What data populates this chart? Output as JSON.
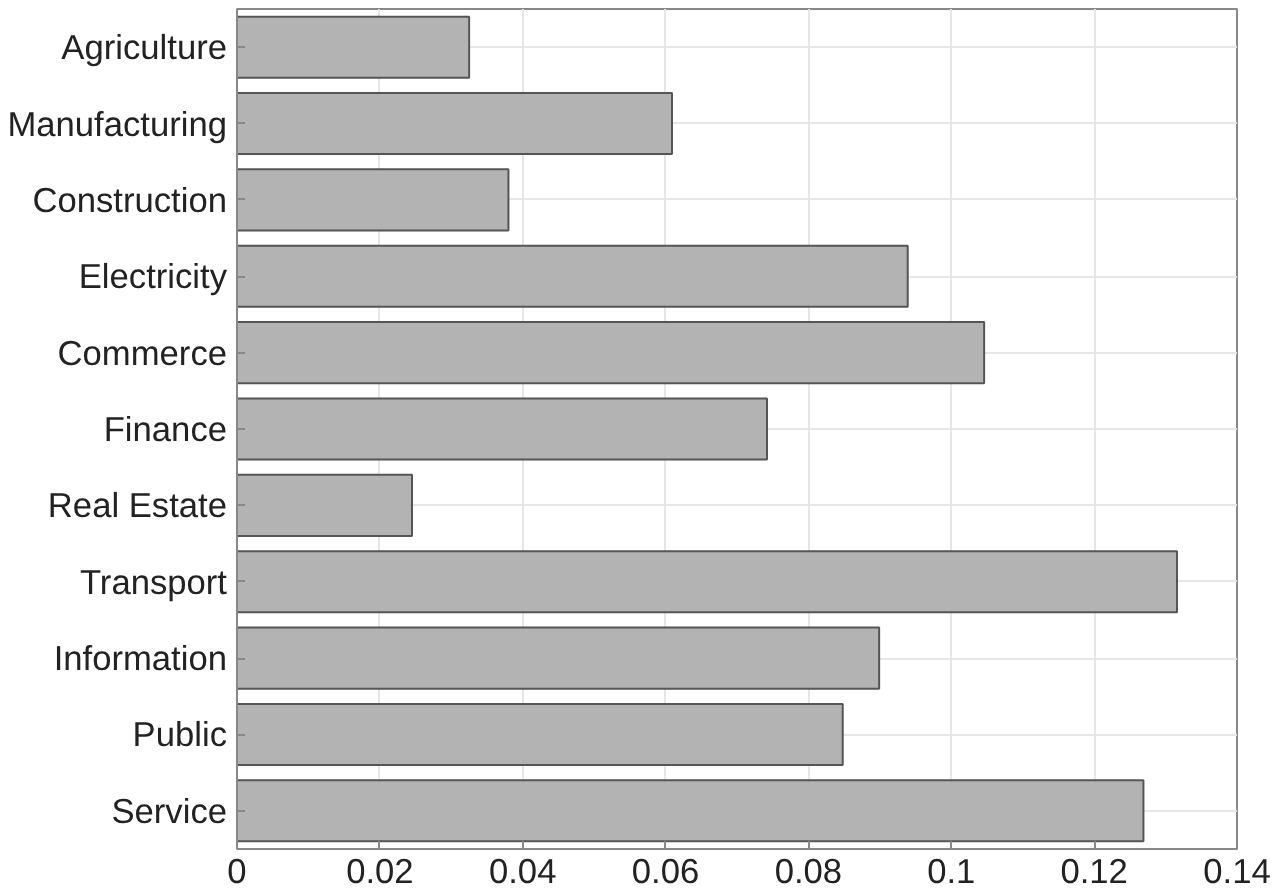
{
  "chart_data": {
    "type": "bar",
    "orientation": "horizontal",
    "categories": [
      "Agriculture",
      "Manufacturing",
      "Construction",
      "Electricity",
      "Commerce",
      "Finance",
      "Real Estate",
      "Transport",
      "Information",
      "Public",
      "Service"
    ],
    "values": [
      0.0325,
      0.0609,
      0.038,
      0.0939,
      0.1046,
      0.0742,
      0.0245,
      0.1316,
      0.0899,
      0.0848,
      0.1269
    ],
    "color": "#b3b3b3",
    "xlim": [
      0,
      0.14
    ],
    "xticks": [
      0,
      0.02,
      0.04,
      0.06,
      0.08,
      0.1,
      0.12,
      0.14
    ],
    "grid": true
  }
}
